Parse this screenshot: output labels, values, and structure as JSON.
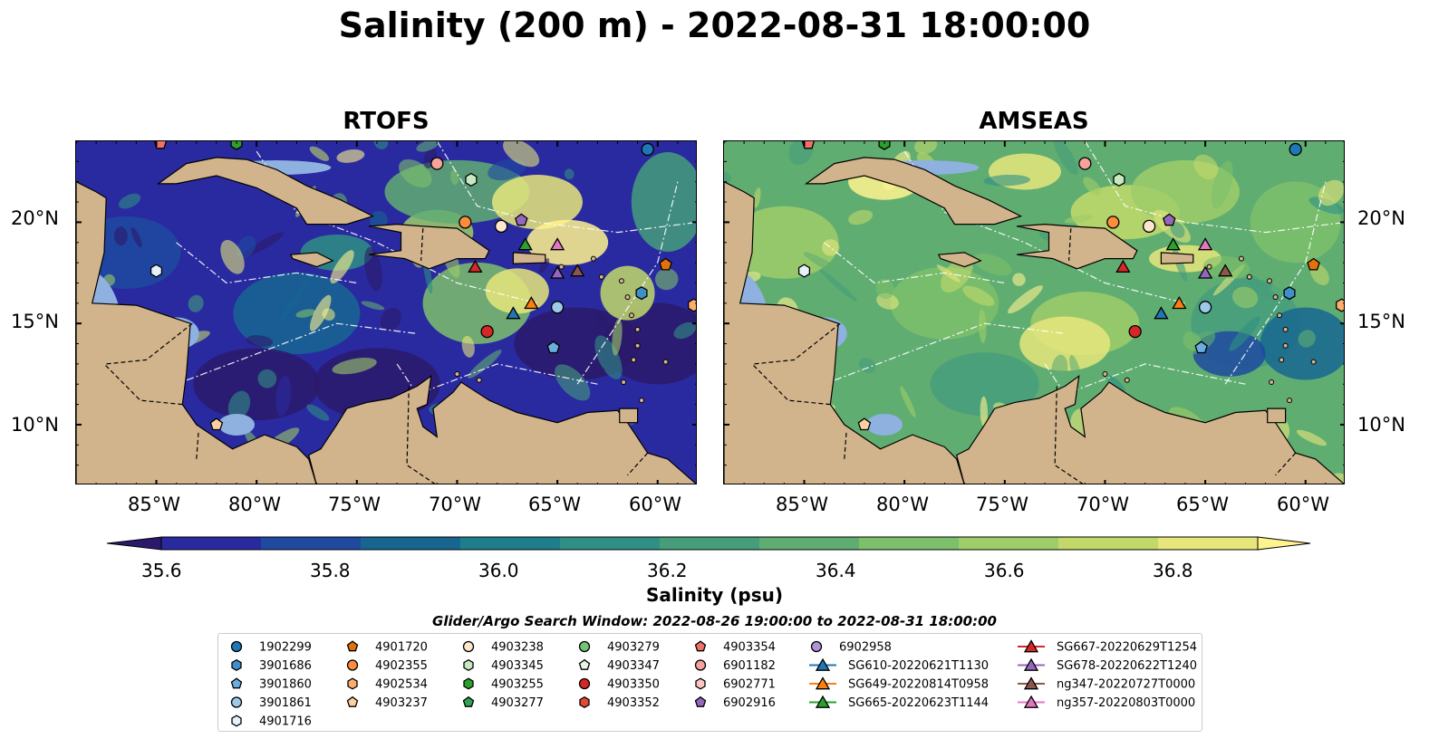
{
  "title": "Salinity (200 m) - 2022-08-31 18:00:00",
  "panels": [
    {
      "name": "RTOFS"
    },
    {
      "name": "AMSEAS"
    }
  ],
  "axes": {
    "lat_ticks": [
      "20°N",
      "15°N",
      "10°N"
    ],
    "lon_ticks": [
      "85°W",
      "80°W",
      "75°W",
      "70°W",
      "65°W",
      "60°W"
    ]
  },
  "colorbar": {
    "label": "Salinity (psu)",
    "min": 35.5,
    "max": 36.9,
    "step": 0.1,
    "extend": "both",
    "colormap": "summer-like yellow to deep indigo",
    "colors": [
      "#2b1a6b",
      "#2a2aa0",
      "#1f4aa0",
      "#176692",
      "#1f7e8b",
      "#2f8f84",
      "#459d7b",
      "#60ad72",
      "#7dc06b",
      "#9fcd68",
      "#c2d96a",
      "#e6e67b",
      "#fff38e"
    ],
    "ticks": [
      "35.6",
      "35.8",
      "36.0",
      "36.2",
      "36.4",
      "36.6",
      "36.8"
    ]
  },
  "search_window": "Glider/Argo Search Window: 2022-08-26 19:00:00 to 2022-08-31 18:00:00",
  "legend": {
    "items": [
      {
        "label": "1902299",
        "marker": "circle",
        "color": "#1f77b4"
      },
      {
        "label": "3901686",
        "marker": "hexagon",
        "color": "#3f8fc8"
      },
      {
        "label": "3901860",
        "marker": "pentagon",
        "color": "#6aaee0"
      },
      {
        "label": "3901861",
        "marker": "circle",
        "color": "#9ecae9"
      },
      {
        "label": "4901716",
        "marker": "hexagon",
        "color": "#e6f1fb"
      },
      {
        "label": "4901720",
        "marker": "pentagon",
        "color": "#e6700a"
      },
      {
        "label": "4902355",
        "marker": "circle",
        "color": "#fd8d3c"
      },
      {
        "label": "4902534",
        "marker": "hexagon",
        "color": "#fdae6b"
      },
      {
        "label": "4903237",
        "marker": "pentagon",
        "color": "#fdd0a2"
      },
      {
        "label": "4903238",
        "marker": "circle",
        "color": "#fde6cc"
      },
      {
        "label": "4903345",
        "marker": "hexagon",
        "color": "#c7e9c0"
      },
      {
        "label": "4903255",
        "marker": "hexagon",
        "color": "#2ca02c"
      },
      {
        "label": "4903277",
        "marker": "pentagon",
        "color": "#31a354"
      },
      {
        "label": "4903279",
        "marker": "circle",
        "color": "#74c476"
      },
      {
        "label": "4903347",
        "marker": "pentagon",
        "color": "#e5f5e0"
      },
      {
        "label": "4903350",
        "marker": "circle",
        "color": "#d62728"
      },
      {
        "label": "4903352",
        "marker": "hexagon",
        "color": "#e34a33"
      },
      {
        "label": "4903354",
        "marker": "pentagon",
        "color": "#f0706a"
      },
      {
        "label": "6901182",
        "marker": "circle",
        "color": "#f7a29b"
      },
      {
        "label": "6902771",
        "marker": "hexagon",
        "color": "#fcc5c0"
      },
      {
        "label": "6902916",
        "marker": "pentagon",
        "color": "#9467bd"
      },
      {
        "label": "6902958",
        "marker": "circle",
        "color": "#b294d6"
      },
      {
        "label": "SG610-20220621T1130",
        "marker": "triangle",
        "color": "#1f77b4",
        "line": true
      },
      {
        "label": "SG649-20220814T0958",
        "marker": "triangle",
        "color": "#ff7f0e",
        "line": true
      },
      {
        "label": "SG665-20220623T1144",
        "marker": "triangle",
        "color": "#2ca02c",
        "line": true
      },
      {
        "label": "SG667-20220629T1254",
        "marker": "triangle",
        "color": "#d62728",
        "line": true
      },
      {
        "label": "SG678-20220622T1240",
        "marker": "triangle",
        "color": "#9467bd",
        "line": true
      },
      {
        "label": "ng347-20220727T0000",
        "marker": "triangle",
        "color": "#8c564b",
        "line": true
      },
      {
        "label": "ng357-20220803T0000",
        "marker": "triangle",
        "color": "#e377c2",
        "line": true
      }
    ]
  },
  "map": {
    "extent": {
      "lon_min": -89,
      "lon_max": -58,
      "lat_min": 7,
      "lat_max": 24
    },
    "land_color": "#d2b48c",
    "water_color": "#8fb1e0",
    "platforms": [
      {
        "id": "1902299",
        "lon": -60.5,
        "lat": 23.6
      },
      {
        "id": "3901686",
        "lon": -60.8,
        "lat": 16.5
      },
      {
        "id": "3901860",
        "lon": -65.2,
        "lat": 13.8
      },
      {
        "id": "3901861",
        "lon": -65.0,
        "lat": 15.8
      },
      {
        "id": "4901716",
        "lon": -85.0,
        "lat": 17.6
      },
      {
        "id": "4901720",
        "lon": -59.6,
        "lat": 17.9
      },
      {
        "id": "4902355",
        "lon": -69.6,
        "lat": 20.0
      },
      {
        "id": "4902534",
        "lon": -58.2,
        "lat": 15.9
      },
      {
        "id": "4903237",
        "lon": -82.0,
        "lat": 10.0
      },
      {
        "id": "4903238",
        "lon": -67.8,
        "lat": 19.8
      },
      {
        "id": "4903345",
        "lon": -69.3,
        "lat": 22.1
      },
      {
        "id": "4903255",
        "lon": -81.0,
        "lat": 23.9
      },
      {
        "id": "4903350",
        "lon": -68.5,
        "lat": 14.6
      },
      {
        "id": "4903354",
        "lon": -84.8,
        "lat": 23.9
      },
      {
        "id": "6901182",
        "lon": -71.0,
        "lat": 22.9
      },
      {
        "id": "6902916",
        "lon": -66.8,
        "lat": 20.1
      },
      {
        "id": "SG610-20220621T1130",
        "lon": -67.2,
        "lat": 15.5
      },
      {
        "id": "SG649-20220814T0958",
        "lon": -66.3,
        "lat": 16.0
      },
      {
        "id": "SG665-20220623T1144",
        "lon": -66.6,
        "lat": 18.9
      },
      {
        "id": "SG667-20220629T1254",
        "lon": -69.1,
        "lat": 17.8
      },
      {
        "id": "SG678-20220622T1240",
        "lon": -65.0,
        "lat": 17.5
      },
      {
        "id": "ng347-20220727T0000",
        "lon": -64.0,
        "lat": 17.6
      },
      {
        "id": "ng357-20220803T0000",
        "lon": -65.0,
        "lat": 18.9
      }
    ]
  }
}
